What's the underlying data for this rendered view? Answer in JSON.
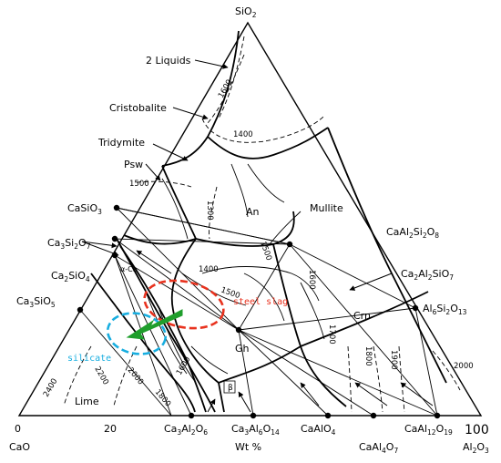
{
  "vertices": {
    "top": {
      "main": "SiO",
      "sub": "2"
    },
    "left": {
      "label": "CaO",
      "value": "0"
    },
    "right": {
      "main": "Al",
      "sub": "2",
      "main2": "O",
      "sub2": "3",
      "value": "100"
    }
  },
  "axis": {
    "tick_20": "20",
    "unit": "Wt %"
  },
  "phase_fields": {
    "two_liquids": "2 Liquids",
    "cristobalite": "Cristobalite",
    "tridymite": "Tridymite",
    "psw": "Psw",
    "an": "An",
    "mullite": "Mullite",
    "crn": "Crn",
    "gh": "Gh",
    "lime": "Lime",
    "alpha_c2s": "α-Ca",
    "beta": "β"
  },
  "compounds": {
    "casio3": {
      "parts": [
        "CaSiO",
        "3"
      ]
    },
    "ca3si2o7": {
      "parts": [
        "Ca",
        "3",
        "Si",
        "2",
        "O",
        "7"
      ]
    },
    "ca2sio4": {
      "parts": [
        "Ca",
        "2",
        "SiO",
        "4"
      ]
    },
    "ca3sio5": {
      "parts": [
        "Ca",
        "3",
        "SiO",
        "5"
      ]
    },
    "caal2si2o8": {
      "parts": [
        "CaAl",
        "2",
        "Si",
        "2",
        "O",
        "8"
      ]
    },
    "ca2al2sio7": {
      "parts": [
        "Ca",
        "2",
        "Al",
        "2",
        "SiO",
        "7"
      ]
    },
    "al6si2o13": {
      "parts": [
        "Al",
        "6",
        "Si",
        "2",
        "O",
        "13"
      ]
    },
    "ca3al2o6": {
      "parts": [
        "Ca",
        "3",
        "Al",
        "2",
        "O",
        "6"
      ]
    },
    "ca3al6o14": {
      "parts": [
        "Ca",
        "3",
        "Al",
        "6",
        "O",
        "14"
      ]
    },
    "caalo4": {
      "parts": [
        "CaAlO",
        "4"
      ]
    },
    "caal4o7": {
      "parts": [
        "CaAl",
        "4",
        "O",
        "7"
      ]
    },
    "caal12o19": {
      "parts": [
        "CaAl",
        "12",
        "O",
        "19"
      ]
    }
  },
  "isotherms": {
    "t1600_top": "1600",
    "t1400_top": "1400",
    "t1500_left": "1500",
    "t1300": "1300",
    "t1500_mid": "1500",
    "t1400_mid": "1400",
    "t1500_gh": "1500",
    "t1600_right": "1600",
    "t1700": "1700",
    "t1800_right": "1800",
    "t1900": "1900",
    "t2000_right": "2000",
    "t1600_low": "1600",
    "t2000_low": "2000",
    "t2200": "2200",
    "t1800_low": "1800",
    "t2400": "2400"
  },
  "annotations": {
    "steel_slag": "steel slag",
    "silicate": "silicate"
  },
  "colors": {
    "steel_slag": "#e8321e",
    "silicate": "#18aee0",
    "arrow": "#1f9e2c"
  }
}
